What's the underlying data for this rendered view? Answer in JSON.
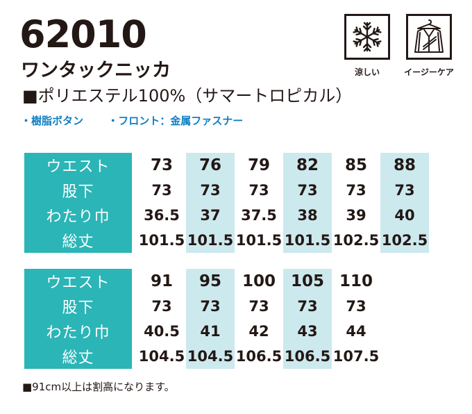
{
  "model_number": "62010",
  "product_name": "ワンタックニッカ",
  "material": "■ポリエステル100%（サマートロピカル）",
  "features": [
    "・樹脂ボタン",
    "・フロント：金属ファスナー"
  ],
  "care_icons": [
    {
      "icon": "snowflake-icon",
      "label": "涼しい"
    },
    {
      "icon": "easy-care-jacket-icon",
      "label": "イージーケア"
    }
  ],
  "colors": {
    "label_bg": "#2bb5b7",
    "shade_bg": "#cce9ee",
    "feature_text": "#0f7fc3"
  },
  "size_tables": [
    {
      "rows": [
        {
          "label": "ウエスト",
          "values": [
            "73",
            "76",
            "79",
            "82",
            "85",
            "88"
          ]
        },
        {
          "label": "股下",
          "values": [
            "73",
            "73",
            "73",
            "73",
            "73",
            "73"
          ]
        },
        {
          "label": "わたり巾",
          "values": [
            "36.5",
            "37",
            "37.5",
            "38",
            "39",
            "40"
          ]
        },
        {
          "label": "総丈",
          "values": [
            "101.5",
            "101.5",
            "101.5",
            "101.5",
            "102.5",
            "102.5"
          ]
        }
      ]
    },
    {
      "rows": [
        {
          "label": "ウエスト",
          "values": [
            "91",
            "95",
            "100",
            "105",
            "110"
          ]
        },
        {
          "label": "股下",
          "values": [
            "73",
            "73",
            "73",
            "73",
            "73"
          ]
        },
        {
          "label": "わたり巾",
          "values": [
            "40.5",
            "41",
            "42",
            "43",
            "44"
          ]
        },
        {
          "label": "総丈",
          "values": [
            "104.5",
            "104.5",
            "106.5",
            "106.5",
            "107.5"
          ]
        }
      ]
    }
  ],
  "note": "■91cm以上は割高になります。"
}
